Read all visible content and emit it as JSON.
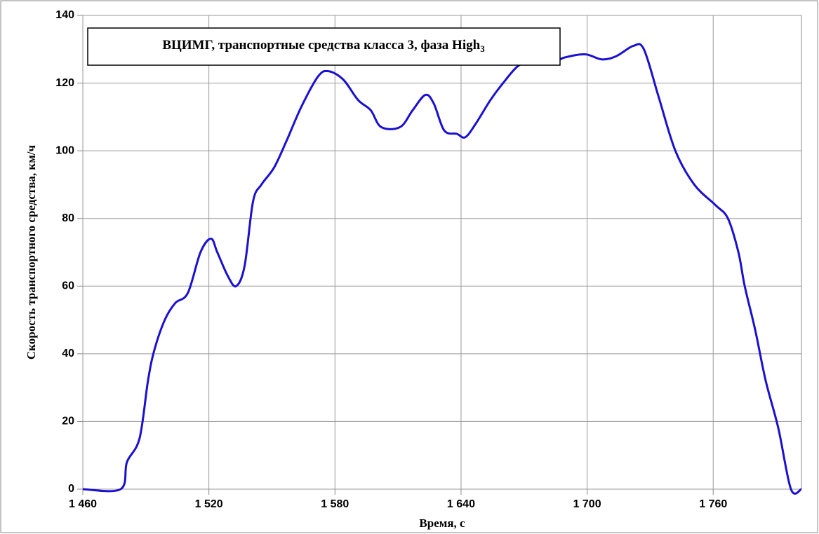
{
  "chart_data": {
    "type": "line",
    "title": "ВЦИМГ, транспортные средства класса 3, фаза High",
    "title_subscript": "3",
    "x_label": "Время, с",
    "y_label": "Скорость транспортного средства, км/ч",
    "xlim": [
      1460,
      1802
    ],
    "ylim": [
      0,
      140
    ],
    "xticks": [
      {
        "value": 1460,
        "label": "1 460"
      },
      {
        "value": 1520,
        "label": "1 520"
      },
      {
        "value": 1580,
        "label": "1 580"
      },
      {
        "value": 1640,
        "label": "1 640"
      },
      {
        "value": 1700,
        "label": "1 700"
      },
      {
        "value": 1760,
        "label": "1 760"
      }
    ],
    "yticks": [
      0,
      20,
      40,
      60,
      80,
      100,
      120,
      140
    ],
    "grid": true,
    "x": [
      1460,
      1478,
      1481,
      1487,
      1491,
      1494,
      1499,
      1504,
      1510,
      1516,
      1521,
      1524,
      1529,
      1533,
      1537,
      1541,
      1545,
      1551,
      1557,
      1564,
      1572,
      1577,
      1584,
      1591,
      1597,
      1602,
      1611,
      1617,
      1623,
      1627,
      1632,
      1638,
      1642,
      1647,
      1654,
      1660,
      1667,
      1674,
      1679,
      1684,
      1689,
      1699,
      1707,
      1714,
      1722,
      1727,
      1734,
      1742,
      1751,
      1761,
      1767,
      1772,
      1775,
      1780,
      1785,
      1791,
      1797,
      1802
    ],
    "series": [
      {
        "name": "Скорость",
        "color": "#1a10d0",
        "values": [
          0,
          0,
          8,
          15,
          32,
          41,
          50,
          55,
          58,
          70,
          74,
          70,
          63,
          60,
          66,
          85,
          90,
          95,
          103,
          113,
          122,
          123.5,
          121,
          115,
          112,
          107,
          107,
          112,
          116.5,
          114,
          106,
          105,
          104,
          108,
          115,
          120,
          125,
          127,
          127,
          126,
          127.5,
          128.5,
          127,
          128,
          131,
          130,
          116,
          100,
          90,
          84,
          80,
          70,
          60,
          47,
          32,
          18,
          0,
          0
        ]
      }
    ]
  }
}
